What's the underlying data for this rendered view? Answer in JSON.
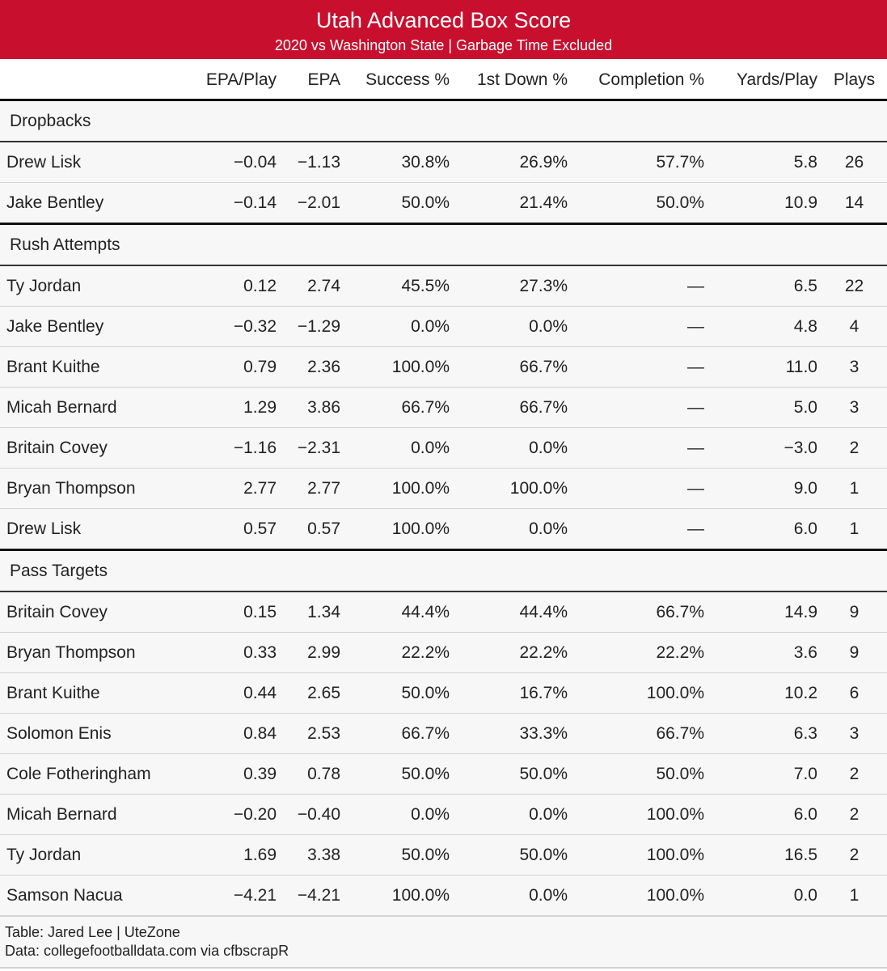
{
  "header": {
    "title": "Utah Advanced Box Score",
    "subtitle": "2020 vs Washington State | Garbage Time Excluded"
  },
  "colors": {
    "header_bg": "#c8102e",
    "header_text": "#ffffff",
    "body_bg": "#f7f7f7"
  },
  "chart_data": {
    "type": "table",
    "title": "Utah Advanced Box Score",
    "subtitle": "2020 vs Washington State | Garbage Time Excluded",
    "columns": [
      "",
      "EPA/Play",
      "EPA",
      "Success %",
      "1st Down %",
      "Completion %",
      "Yards/Play",
      "Plays"
    ],
    "groups": [
      {
        "name": "Dropbacks",
        "rows": [
          [
            "Drew Lisk",
            "−0.04",
            "−1.13",
            "30.8%",
            "26.9%",
            "57.7%",
            "5.8",
            "26"
          ],
          [
            "Jake Bentley",
            "−0.14",
            "−2.01",
            "50.0%",
            "21.4%",
            "50.0%",
            "10.9",
            "14"
          ]
        ]
      },
      {
        "name": "Rush Attempts",
        "rows": [
          [
            "Ty Jordan",
            "0.12",
            "2.74",
            "45.5%",
            "27.3%",
            "—",
            "6.5",
            "22"
          ],
          [
            "Jake Bentley",
            "−0.32",
            "−1.29",
            "0.0%",
            "0.0%",
            "—",
            "4.8",
            "4"
          ],
          [
            "Brant Kuithe",
            "0.79",
            "2.36",
            "100.0%",
            "66.7%",
            "—",
            "11.0",
            "3"
          ],
          [
            "Micah Bernard",
            "1.29",
            "3.86",
            "66.7%",
            "66.7%",
            "—",
            "5.0",
            "3"
          ],
          [
            "Britain Covey",
            "−1.16",
            "−2.31",
            "0.0%",
            "0.0%",
            "—",
            "−3.0",
            "2"
          ],
          [
            "Bryan Thompson",
            "2.77",
            "2.77",
            "100.0%",
            "100.0%",
            "—",
            "9.0",
            "1"
          ],
          [
            "Drew Lisk",
            "0.57",
            "0.57",
            "100.0%",
            "0.0%",
            "—",
            "6.0",
            "1"
          ]
        ]
      },
      {
        "name": "Pass Targets",
        "rows": [
          [
            "Britain Covey",
            "0.15",
            "1.34",
            "44.4%",
            "44.4%",
            "66.7%",
            "14.9",
            "9"
          ],
          [
            "Bryan Thompson",
            "0.33",
            "2.99",
            "22.2%",
            "22.2%",
            "22.2%",
            "3.6",
            "9"
          ],
          [
            "Brant Kuithe",
            "0.44",
            "2.65",
            "50.0%",
            "16.7%",
            "100.0%",
            "10.2",
            "6"
          ],
          [
            "Solomon Enis",
            "0.84",
            "2.53",
            "66.7%",
            "33.3%",
            "66.7%",
            "6.3",
            "3"
          ],
          [
            "Cole Fotheringham",
            "0.39",
            "0.78",
            "50.0%",
            "50.0%",
            "50.0%",
            "7.0",
            "2"
          ],
          [
            "Micah Bernard",
            "−0.20",
            "−0.40",
            "0.0%",
            "0.0%",
            "100.0%",
            "6.0",
            "2"
          ],
          [
            "Ty Jordan",
            "1.69",
            "3.38",
            "50.0%",
            "50.0%",
            "100.0%",
            "16.5",
            "2"
          ],
          [
            "Samson Nacua",
            "−4.21",
            "−4.21",
            "100.0%",
            "0.0%",
            "100.0%",
            "0.0",
            "1"
          ]
        ]
      }
    ]
  },
  "footer": {
    "credit": "Table: Jared Lee | UteZone",
    "source": "Data: collegefootballdata.com via cfbscrapR"
  }
}
